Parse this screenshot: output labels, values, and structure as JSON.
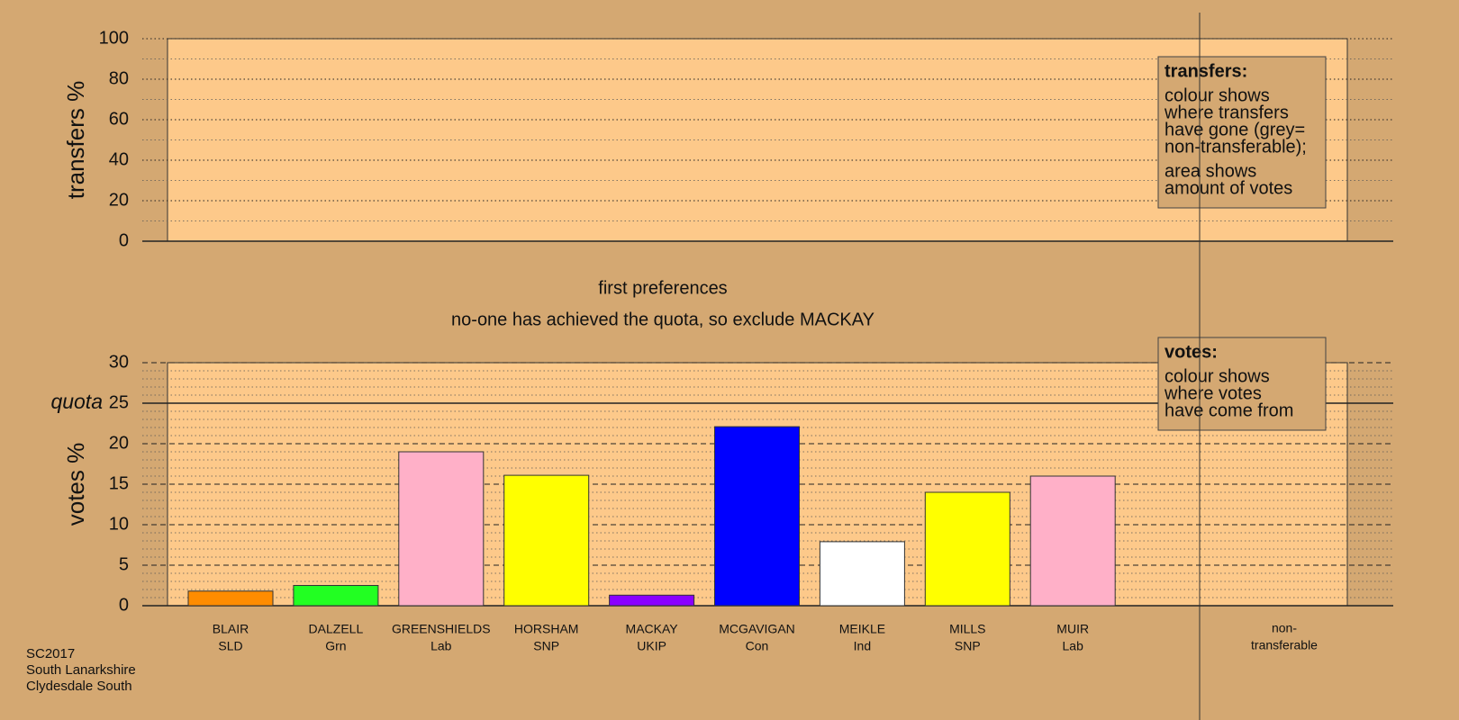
{
  "chart_data": [
    {
      "type": "bar",
      "ylabel": "transfers %",
      "ylim": [
        0,
        100
      ],
      "yticks": [
        0,
        20,
        40,
        60,
        80,
        100
      ],
      "minor_yticks": [
        10,
        30,
        50,
        70,
        90
      ],
      "grid": true,
      "legend": {
        "title": "transfers:",
        "paragraphs": [
          [
            "colour shows",
            "where transfers",
            "have gone (grey=",
            "non-transferable);"
          ],
          [
            "area shows",
            "amount of votes"
          ]
        ]
      }
    },
    {
      "type": "bar",
      "title": "first preferences",
      "subtitle": "no-one has achieved the quota, so exclude MACKAY",
      "ylabel": "votes %",
      "ylim": [
        0,
        30
      ],
      "yticks": [
        0,
        5,
        10,
        15,
        20,
        25,
        30
      ],
      "minor_yticks": [
        1,
        2,
        3,
        4,
        6,
        7,
        8,
        9,
        11,
        12,
        13,
        14,
        16,
        17,
        18,
        19,
        21,
        22,
        23,
        24,
        26,
        27,
        28,
        29
      ],
      "grid": true,
      "quota": 25,
      "quota_label": "quota",
      "categories": [
        "BLAIR",
        "DALZELL",
        "GREENSHIELDS",
        "HORSHAM",
        "MACKAY",
        "MCGAVIGAN",
        "MEIKLE",
        "MILLS",
        "MUIR"
      ],
      "parties": [
        "SLD",
        "Grn",
        "Lab",
        "SNP",
        "UKIP",
        "Con",
        "Ind",
        "SNP",
        "Lab"
      ],
      "values": [
        1.8,
        2.5,
        19.0,
        16.1,
        1.3,
        22.1,
        7.9,
        14.0,
        16.0
      ],
      "colors": [
        "#ff8c00",
        "#22ff22",
        "#ffb0c8",
        "#ffff00",
        "#8b00ff",
        "#0000ff",
        "#ffffff",
        "#ffff00",
        "#ffb0c8"
      ],
      "nontransferable_label": [
        "non-",
        "transferable"
      ],
      "legend": {
        "title": "votes:",
        "paragraphs": [
          [
            "colour shows",
            "where votes",
            "have come from"
          ]
        ]
      }
    }
  ],
  "footer": [
    "SC2017",
    "South Lanarkshire",
    "Clydesdale South"
  ]
}
